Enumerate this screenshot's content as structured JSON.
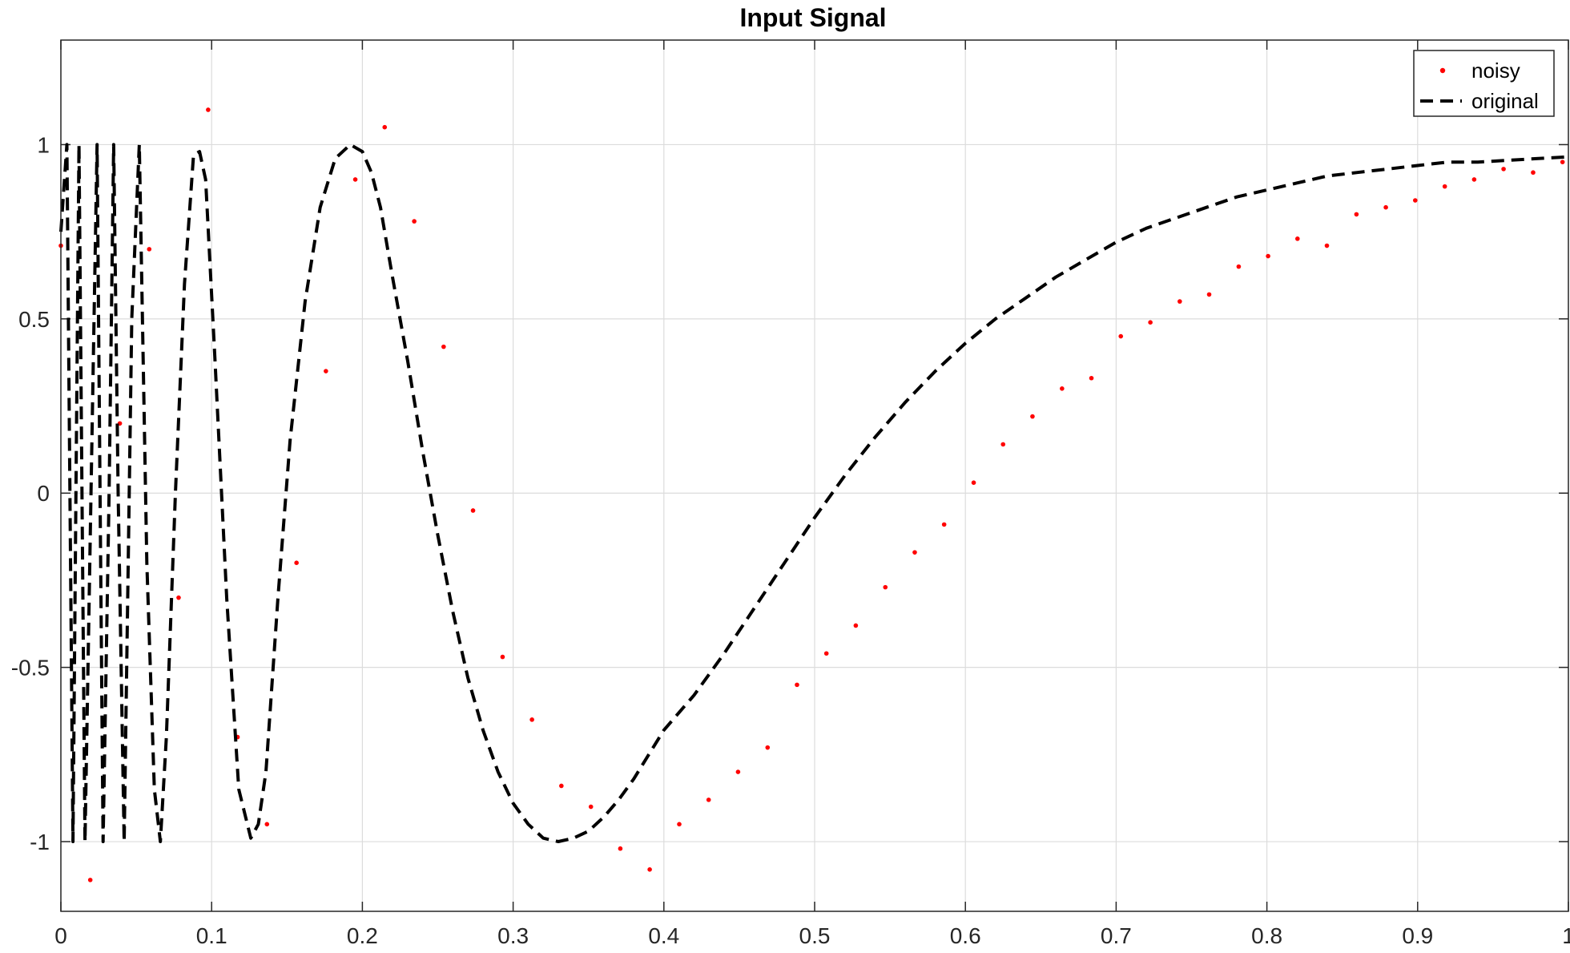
{
  "chart_data": {
    "type": "line",
    "title": "Input Signal",
    "xlabel": "",
    "ylabel": "",
    "xlim": [
      0,
      1
    ],
    "ylim": [
      -1.2,
      1.3
    ],
    "grid": true,
    "legend_position": "top-right",
    "x_ticks": [
      0,
      0.1,
      0.2,
      0.3,
      0.4,
      0.5,
      0.6,
      0.7,
      0.8,
      0.9,
      1
    ],
    "x_tick_labels": [
      "0",
      "0.1",
      "0.2",
      "0.3",
      "0.4",
      "0.5",
      "0.6",
      "0.7",
      "0.8",
      "0.9",
      "1"
    ],
    "y_ticks": [
      -1,
      -0.5,
      0,
      0.5,
      1
    ],
    "y_tick_labels": [
      "-1",
      "-0.5",
      "0",
      "0.5",
      "1"
    ],
    "series": [
      {
        "name": "noisy",
        "style": "markers",
        "color": "#ff0000",
        "x": [
          0.0,
          0.0195,
          0.0391,
          0.0586,
          0.0781,
          0.0977,
          0.1172,
          0.1367,
          0.1563,
          0.1758,
          0.1953,
          0.2148,
          0.2344,
          0.2539,
          0.2734,
          0.293,
          0.3125,
          0.332,
          0.3516,
          0.3711,
          0.3906,
          0.4102,
          0.4297,
          0.4492,
          0.4688,
          0.4883,
          0.5078,
          0.5273,
          0.5469,
          0.5664,
          0.5859,
          0.6055,
          0.625,
          0.6445,
          0.6641,
          0.6836,
          0.7031,
          0.7227,
          0.7422,
          0.7617,
          0.7813,
          0.8008,
          0.8203,
          0.8398,
          0.8594,
          0.8789,
          0.8984,
          0.918,
          0.9375,
          0.957,
          0.9766,
          0.9961
        ],
        "y": [
          0.71,
          -1.11,
          0.2,
          0.7,
          -0.3,
          1.1,
          -0.7,
          -0.95,
          -0.2,
          0.35,
          0.9,
          1.05,
          0.78,
          0.42,
          -0.05,
          -0.47,
          -0.65,
          -0.84,
          -0.9,
          -1.02,
          -1.08,
          -0.95,
          -0.88,
          -0.8,
          -0.73,
          -0.55,
          -0.46,
          -0.38,
          -0.27,
          -0.17,
          -0.09,
          0.03,
          0.14,
          0.22,
          0.3,
          0.33,
          0.45,
          0.49,
          0.55,
          0.57,
          0.65,
          0.68,
          0.73,
          0.71,
          0.8,
          0.82,
          0.84,
          0.88,
          0.9,
          0.93,
          0.92,
          0.95
        ]
      },
      {
        "name": "original",
        "style": "dashed",
        "color": "#000000",
        "x": [
          0.0,
          0.004,
          0.008,
          0.01,
          0.012,
          0.016,
          0.02,
          0.024,
          0.026,
          0.028,
          0.032,
          0.035,
          0.038,
          0.042,
          0.047,
          0.052,
          0.057,
          0.062,
          0.066,
          0.07,
          0.076,
          0.082,
          0.088,
          0.092,
          0.096,
          0.102,
          0.11,
          0.118,
          0.126,
          0.131,
          0.136,
          0.144,
          0.152,
          0.162,
          0.172,
          0.182,
          0.192,
          0.2,
          0.206,
          0.212,
          0.22,
          0.23,
          0.24,
          0.25,
          0.26,
          0.27,
          0.28,
          0.29,
          0.3,
          0.31,
          0.32,
          0.33,
          0.34,
          0.35,
          0.36,
          0.37,
          0.38,
          0.39,
          0.4,
          0.42,
          0.44,
          0.46,
          0.48,
          0.5,
          0.52,
          0.54,
          0.56,
          0.58,
          0.6,
          0.62,
          0.64,
          0.66,
          0.68,
          0.7,
          0.72,
          0.74,
          0.76,
          0.78,
          0.8,
          0.82,
          0.84,
          0.86,
          0.88,
          0.9,
          0.92,
          0.94,
          0.96,
          0.98,
          1.0
        ],
        "y": [
          0.75,
          1.0,
          -1.0,
          0.0,
          1.0,
          -1.0,
          0.0,
          1.0,
          0.0,
          -1.0,
          0.0,
          1.0,
          0.0,
          -1.0,
          0.5,
          1.0,
          -0.2,
          -0.85,
          -1.0,
          -0.7,
          0.0,
          0.6,
          0.97,
          0.98,
          0.9,
          0.4,
          -0.3,
          -0.85,
          -0.99,
          -0.95,
          -0.8,
          -0.3,
          0.15,
          0.55,
          0.82,
          0.96,
          1.0,
          0.98,
          0.92,
          0.82,
          0.62,
          0.38,
          0.12,
          -0.12,
          -0.34,
          -0.53,
          -0.68,
          -0.8,
          -0.89,
          -0.95,
          -0.99,
          -1.0,
          -0.99,
          -0.97,
          -0.93,
          -0.88,
          -0.82,
          -0.75,
          -0.68,
          -0.58,
          -0.46,
          -0.33,
          -0.2,
          -0.07,
          0.05,
          0.16,
          0.26,
          0.35,
          0.43,
          0.5,
          0.56,
          0.62,
          0.67,
          0.72,
          0.76,
          0.79,
          0.82,
          0.85,
          0.87,
          0.89,
          0.91,
          0.92,
          0.93,
          0.94,
          0.95,
          0.95,
          0.955,
          0.96,
          0.965
        ]
      }
    ]
  }
}
